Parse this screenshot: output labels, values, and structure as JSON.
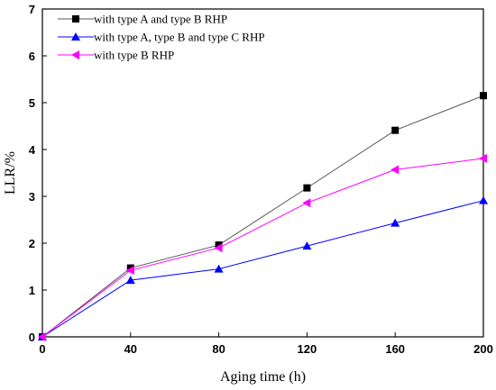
{
  "chart_data": {
    "type": "line",
    "xlabel": "Aging time (h)",
    "ylabel": "LLR/%",
    "xlim": [
      0,
      200
    ],
    "ylim": [
      0,
      7
    ],
    "xticks": [
      "0",
      "40",
      "80",
      "120",
      "160",
      "200"
    ],
    "yticks": [
      "0",
      "1",
      "2",
      "3",
      "4",
      "5",
      "6",
      "7"
    ],
    "grid": false,
    "legend_position": "top-left",
    "x": [
      0,
      40,
      80,
      120,
      160,
      200
    ],
    "series": [
      {
        "name": "with type A and type B RHP",
        "values": [
          0,
          1.47,
          1.96,
          3.18,
          4.41,
          5.15
        ],
        "color": "#000000",
        "line_color": "#555555",
        "marker": "square"
      },
      {
        "name": "with type A, type B and type C RHP",
        "values": [
          0,
          1.21,
          1.45,
          1.94,
          2.43,
          2.91
        ],
        "color": "#0000ff",
        "line_color": "#0000ff",
        "marker": "triangle-up"
      },
      {
        "name": "with type B RHP",
        "values": [
          0,
          1.42,
          1.9,
          2.86,
          3.57,
          3.81
        ],
        "color": "#ff00ff",
        "line_color": "#ff00ff",
        "marker": "triangle-left"
      }
    ]
  }
}
